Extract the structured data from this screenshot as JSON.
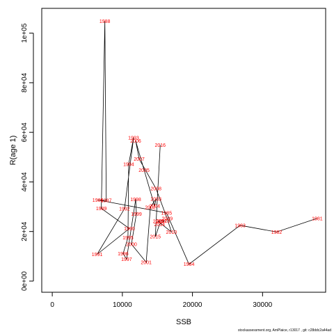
{
  "chart_data": {
    "type": "line",
    "xlabel": "SSB",
    "ylabel": "R(age 1)",
    "xlim": [
      -1500,
      39000
    ],
    "ylim": [
      -4500,
      110000
    ],
    "x_ticks": [
      0,
      10000,
      20000,
      30000
    ],
    "x_tick_labels": [
      "0",
      "10000",
      "20000",
      "30000"
    ],
    "y_ticks": [
      0,
      20000,
      40000,
      60000,
      80000,
      100000
    ],
    "y_tick_labels": [
      "0e+00",
      "2e+04",
      "4e+04",
      "6e+04",
      "8e+04",
      "1e+05"
    ],
    "grid": false,
    "colors": {
      "points": "#ff0000",
      "line": "#000000"
    },
    "points": [
      {
        "label": "1981",
        "x": 37800,
        "y": 25300
      },
      {
        "label": "1982",
        "x": 32000,
        "y": 19800
      },
      {
        "label": "1983",
        "x": 26800,
        "y": 22500
      },
      {
        "label": "1984",
        "x": 19500,
        "y": 6800
      },
      {
        "label": "1985",
        "x": 16300,
        "y": 27500
      },
      {
        "label": "1986",
        "x": 6500,
        "y": 32700
      },
      {
        "label": "1987",
        "x": 7700,
        "y": 32500
      },
      {
        "label": "1988",
        "x": 7500,
        "y": 104800
      },
      {
        "label": "1989",
        "x": 7000,
        "y": 29300
      },
      {
        "label": "1990",
        "x": 11000,
        "y": 21200
      },
      {
        "label": "1991",
        "x": 6400,
        "y": 10800
      },
      {
        "label": "1992",
        "x": 10300,
        "y": 29200
      },
      {
        "label": "1993",
        "x": 11600,
        "y": 57800
      },
      {
        "label": "1994",
        "x": 10900,
        "y": 47100
      },
      {
        "label": "1995",
        "x": 10800,
        "y": 17500
      },
      {
        "label": "1996",
        "x": 10100,
        "y": 11100
      },
      {
        "label": "1997",
        "x": 10600,
        "y": 8900
      },
      {
        "label": "1998",
        "x": 11900,
        "y": 33000
      },
      {
        "label": "1999",
        "x": 12000,
        "y": 27100
      },
      {
        "label": "2000",
        "x": 11300,
        "y": 14900
      },
      {
        "label": "2001",
        "x": 13400,
        "y": 7600
      },
      {
        "label": "2002",
        "x": 14000,
        "y": 29800
      },
      {
        "label": "2003",
        "x": 14800,
        "y": 33100
      },
      {
        "label": "2004",
        "x": 14600,
        "y": 30300
      },
      {
        "label": "2005",
        "x": 13100,
        "y": 44800
      },
      {
        "label": "2006",
        "x": 11900,
        "y": 56500
      },
      {
        "label": "2007",
        "x": 12400,
        "y": 49200
      },
      {
        "label": "2008",
        "x": 14800,
        "y": 37300
      },
      {
        "label": "2009",
        "x": 16400,
        "y": 25200
      },
      {
        "label": "2010",
        "x": 17000,
        "y": 19800
      },
      {
        "label": "2011",
        "x": 15100,
        "y": 24100
      },
      {
        "label": "2012",
        "x": 15600,
        "y": 24300
      },
      {
        "label": "2013",
        "x": 16000,
        "y": 24300
      },
      {
        "label": "2014",
        "x": 15300,
        "y": 22800
      },
      {
        "label": "2015",
        "x": 14700,
        "y": 17900
      },
      {
        "label": "2016",
        "x": 15400,
        "y": 54900
      }
    ]
  },
  "footer": "stockassessment.org, AmPlaice, r13017 ,  git: c28ddc2a44ad"
}
